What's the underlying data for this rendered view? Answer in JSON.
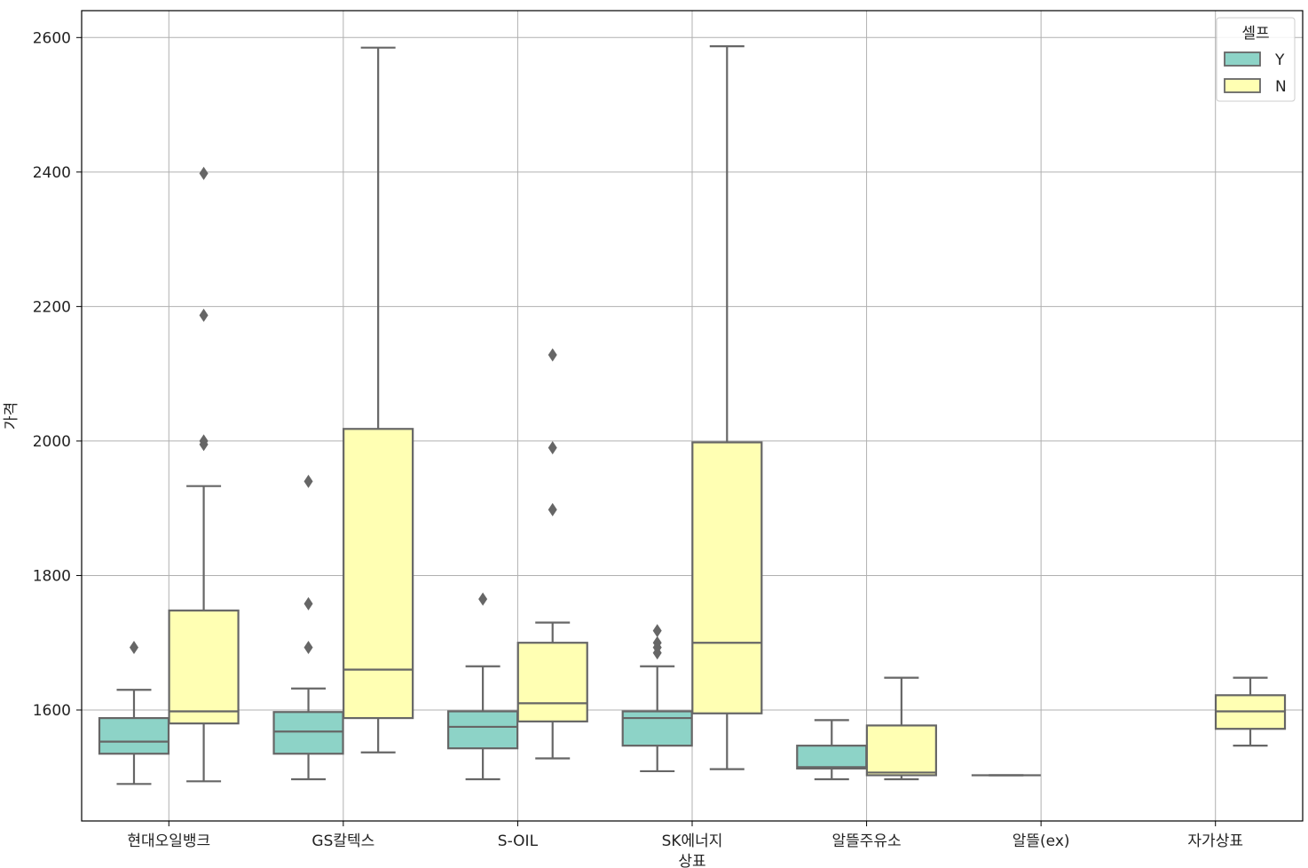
{
  "chart_data": {
    "type": "boxplot",
    "xlabel": "상표",
    "ylabel": "가격",
    "ylim": [
      1435,
      2640
    ],
    "yticks": [
      1600,
      1800,
      2000,
      2200,
      2400,
      2600
    ],
    "grid": true,
    "categories": [
      "현대오일뱅크",
      "GS칼텍스",
      "S-OIL",
      "SK에너지",
      "알뜰주유소",
      "알뜰(ex)",
      "자가상표"
    ],
    "legend": {
      "title": "셀프",
      "placement": "top-right",
      "entries": [
        {
          "label": "Y",
          "color": "#8dd3c7"
        },
        {
          "label": "N",
          "color": "#ffffb3"
        }
      ]
    },
    "series": [
      {
        "name": "Y",
        "color": "#8dd3c7",
        "boxes": [
          {
            "category": "현대오일뱅크",
            "whislo": 1490,
            "q1": 1535,
            "med": 1553,
            "q3": 1588,
            "whishi": 1630,
            "fliers": [
              1693
            ]
          },
          {
            "category": "GS칼텍스",
            "whislo": 1497,
            "q1": 1535,
            "med": 1568,
            "q3": 1597,
            "whishi": 1632,
            "fliers": [
              1940,
              1758,
              1693
            ]
          },
          {
            "category": "S-OIL",
            "whislo": 1497,
            "q1": 1543,
            "med": 1575,
            "q3": 1598,
            "whishi": 1665,
            "fliers": [
              1765
            ]
          },
          {
            "category": "SK에너지",
            "whislo": 1509,
            "q1": 1547,
            "med": 1588,
            "q3": 1598,
            "whishi": 1665,
            "fliers": [
              1718,
              1700,
              1693,
              1685
            ]
          },
          {
            "category": "알뜰주유소",
            "whislo": 1497,
            "q1": 1513,
            "med": 1515,
            "q3": 1547,
            "whishi": 1585,
            "fliers": []
          },
          {
            "category": "알뜰(ex)",
            "whislo": 1503,
            "q1": 1503,
            "med": 1503,
            "q3": 1503,
            "whishi": 1503,
            "fliers": []
          }
        ]
      },
      {
        "name": "N",
        "color": "#ffffb3",
        "boxes": [
          {
            "category": "현대오일뱅크",
            "whislo": 1494,
            "q1": 1580,
            "med": 1598,
            "q3": 1748,
            "whishi": 1933,
            "fliers": [
              2398,
              2187,
              2000,
              1995
            ]
          },
          {
            "category": "GS칼텍스",
            "whislo": 1537,
            "q1": 1588,
            "med": 1660,
            "q3": 2018,
            "whishi": 2585,
            "fliers": []
          },
          {
            "category": "S-OIL",
            "whislo": 1528,
            "q1": 1583,
            "med": 1610,
            "q3": 1700,
            "whishi": 1730,
            "fliers": [
              2128,
              1990,
              1898
            ]
          },
          {
            "category": "SK에너지",
            "whislo": 1512,
            "q1": 1595,
            "med": 1700,
            "q3": 1998,
            "whishi": 2587,
            "fliers": []
          },
          {
            "category": "알뜰주유소",
            "whislo": 1497,
            "q1": 1503,
            "med": 1507,
            "q3": 1577,
            "whishi": 1648,
            "fliers": []
          },
          {
            "category": "자가상표",
            "whislo": 1547,
            "q1": 1572,
            "med": 1598,
            "q3": 1622,
            "whishi": 1648,
            "fliers": []
          }
        ]
      }
    ]
  }
}
